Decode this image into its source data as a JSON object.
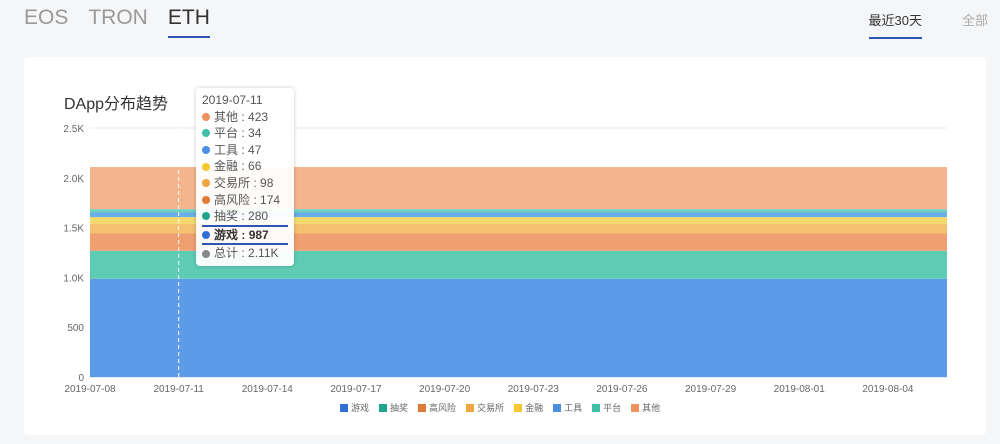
{
  "tabs": [
    {
      "label": "EOS"
    },
    {
      "label": "TRON"
    },
    {
      "label": "ETH",
      "active": true
    }
  ],
  "range": [
    {
      "label": "最近30天",
      "active": true
    },
    {
      "label": "全部"
    }
  ],
  "chart_data": {
    "type": "area",
    "title": "DApp分布趋势",
    "stacked": true,
    "x_start": "2019-07-08",
    "x_end": "2019-08-06",
    "days": 30,
    "xticks": [
      "2019-07-08",
      "2019-07-11",
      "2019-07-14",
      "2019-07-17",
      "2019-07-20",
      "2019-07-23",
      "2019-07-26",
      "2019-07-29",
      "2019-08-01",
      "2019-08-04"
    ],
    "yticks": [
      "0",
      "500",
      "1.0K",
      "1.5K",
      "2.0K",
      "2.5K"
    ],
    "ylim": [
      0,
      2500
    ],
    "series": [
      {
        "name": "游戏",
        "value": 987,
        "color": "#5b9be8",
        "dot": "#2f6fd6"
      },
      {
        "name": "抽奖",
        "value": 280,
        "color": "#5ecbb5",
        "dot": "#1ea58a"
      },
      {
        "name": "高风险",
        "value": 174,
        "color": "#f0a070",
        "dot": "#e07a3a"
      },
      {
        "name": "交易所",
        "value": 98,
        "color": "#f5c070",
        "dot": "#f0a540"
      },
      {
        "name": "金融",
        "value": 66,
        "color": "#f7d86a",
        "dot": "#f5c830"
      },
      {
        "name": "工具",
        "value": 47,
        "color": "#6aaee8",
        "dot": "#4a8fe0"
      },
      {
        "name": "平台",
        "value": 34,
        "color": "#6fd0c0",
        "dot": "#3fbfa8"
      },
      {
        "name": "其他",
        "value": 423,
        "color": "#f3b48e",
        "dot": "#f0935a"
      }
    ],
    "tooltip": {
      "date": "2019-07-11",
      "highlight": "游戏",
      "total_label": "总计",
      "total": "2.11K"
    }
  }
}
